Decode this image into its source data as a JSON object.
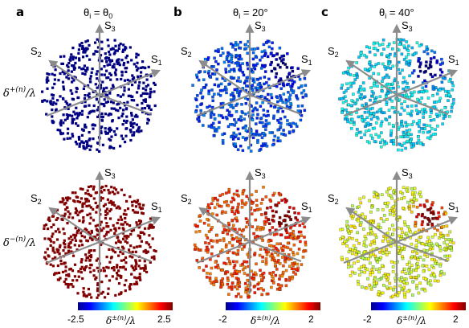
{
  "panels": [
    {
      "label": "a",
      "title": "θi = θ0",
      "title_parts": {
        "theta": "θ",
        "sub": "i",
        "rest": " = θ",
        "sub2": "0"
      }
    },
    {
      "label": "b",
      "title": "θi = 20°",
      "title_parts": {
        "theta": "θ",
        "sub": "i",
        "rest": " = 20°",
        "sub2": ""
      }
    },
    {
      "label": "c",
      "title": "θi = 40°",
      "title_parts": {
        "theta": "θ",
        "sub": "i",
        "rest": " = 40°",
        "sub2": ""
      }
    }
  ],
  "axes_labels": {
    "s1": "S",
    "s1_sub": "1",
    "s2": "S",
    "s2_sub": "2",
    "s3": "S",
    "s3_sub": "3"
  },
  "row_labels": [
    {
      "main": "δ",
      "sup": "+(n)",
      "rest": "/λ"
    },
    {
      "main": "δ",
      "sup": "−(n)",
      "rest": "/λ"
    }
  ],
  "colorbars": [
    {
      "min_label": "-2.5",
      "max_label": "2.5",
      "label_main": "δ",
      "label_sup": "±(n)",
      "label_rest": "/λ"
    },
    {
      "min_label": "-2",
      "max_label": "2",
      "label_main": "δ",
      "label_sup": "±(n)",
      "label_rest": "/λ"
    },
    {
      "min_label": "-2",
      "max_label": "2",
      "label_main": "δ",
      "label_sup": "±(n)",
      "label_rest": "/λ"
    }
  ],
  "colors": {
    "axis_gray": "#8c8c8c",
    "colormap": "jet"
  },
  "chart_data": [
    {
      "type": "scatter",
      "panel": "a",
      "row": "δ+(n)/λ",
      "title": "θi = θ0",
      "clim": [
        -2.5,
        2.5
      ],
      "dominant_value": -2.5
    },
    {
      "type": "scatter",
      "panel": "a",
      "row": "δ−(n)/λ",
      "title": "θi = θ0",
      "clim": [
        -2.5,
        2.5
      ],
      "dominant_value": 2.5
    },
    {
      "type": "scatter",
      "panel": "b",
      "row": "δ+(n)/λ",
      "title": "θi = 20°",
      "clim": [
        -2,
        2
      ],
      "dominant_value": -1.2
    },
    {
      "type": "scatter",
      "panel": "b",
      "row": "δ−(n)/λ",
      "title": "θi = 20°",
      "clim": [
        -2,
        2
      ],
      "dominant_value": 1.2
    },
    {
      "type": "scatter",
      "panel": "c",
      "row": "δ+(n)/λ",
      "title": "θi = 40°",
      "clim": [
        -2,
        2
      ],
      "dominant_value": -0.6
    },
    {
      "type": "scatter",
      "panel": "c",
      "row": "δ−(n)/λ",
      "title": "θi = 40°",
      "clim": [
        -2,
        2
      ],
      "dominant_value": 0.4
    }
  ]
}
